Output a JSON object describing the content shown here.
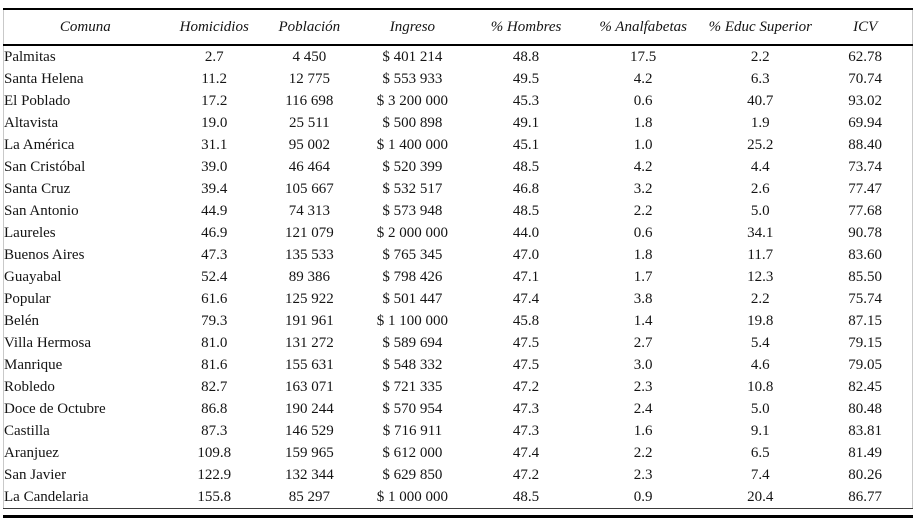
{
  "chart_data": {
    "type": "table",
    "column_keys": [
      "comuna",
      "homicidios",
      "poblacion",
      "ingreso",
      "pct_hombres",
      "pct_analfabetas",
      "pct_educ_superior",
      "icv"
    ],
    "columns": [
      "Comuna",
      "Homicidios",
      "Población",
      "Ingreso",
      "% Hombres",
      "% Analfabetas",
      "% Educ Superior",
      "ICV"
    ],
    "rows": [
      [
        "Palmitas",
        "2.7",
        "4 450",
        "$ 401 214",
        "48.8",
        "17.5",
        "2.2",
        "62.78"
      ],
      [
        "Santa Helena",
        "11.2",
        "12 775",
        "$ 553 933",
        "49.5",
        "4.2",
        "6.3",
        "70.74"
      ],
      [
        "El Poblado",
        "17.2",
        "116 698",
        "$ 3 200 000",
        "45.3",
        "0.6",
        "40.7",
        "93.02"
      ],
      [
        "Altavista",
        "19.0",
        "25 511",
        "$ 500 898",
        "49.1",
        "1.8",
        "1.9",
        "69.94"
      ],
      [
        "La América",
        "31.1",
        "95 002",
        "$ 1 400 000",
        "45.1",
        "1.0",
        "25.2",
        "88.40"
      ],
      [
        "San Cristóbal",
        "39.0",
        "46 464",
        "$ 520 399",
        "48.5",
        "4.2",
        "4.4",
        "73.74"
      ],
      [
        "Santa Cruz",
        "39.4",
        "105 667",
        "$ 532 517",
        "46.8",
        "3.2",
        "2.6",
        "77.47"
      ],
      [
        "San Antonio",
        "44.9",
        "74 313",
        "$ 573 948",
        "48.5",
        "2.2",
        "5.0",
        "77.68"
      ],
      [
        "Laureles",
        "46.9",
        "121 079",
        "$ 2 000 000",
        "44.0",
        "0.6",
        "34.1",
        "90.78"
      ],
      [
        "Buenos Aires",
        "47.3",
        "135 533",
        "$ 765 345",
        "47.0",
        "1.8",
        "11.7",
        "83.60"
      ],
      [
        "Guayabal",
        "52.4",
        "89 386",
        "$ 798 426",
        "47.1",
        "1.7",
        "12.3",
        "85.50"
      ],
      [
        "Popular",
        "61.6",
        "125 922",
        "$ 501 447",
        "47.4",
        "3.8",
        "2.2",
        "75.74"
      ],
      [
        "Belén",
        "79.3",
        "191 961",
        "$ 1 100 000",
        "45.8",
        "1.4",
        "19.8",
        "87.15"
      ],
      [
        "Villa Hermosa",
        "81.0",
        "131 272",
        "$ 589 694",
        "47.5",
        "2.7",
        "5.4",
        "79.15"
      ],
      [
        "Manrique",
        "81.6",
        "155 631",
        "$ 548 332",
        "47.5",
        "3.0",
        "4.6",
        "79.05"
      ],
      [
        "Robledo",
        "82.7",
        "163 071",
        "$ 721 335",
        "47.2",
        "2.3",
        "10.8",
        "82.45"
      ],
      [
        "Doce de Octubre",
        "86.8",
        "190 244",
        "$ 570 954",
        "47.3",
        "2.4",
        "5.0",
        "80.48"
      ],
      [
        "Castilla",
        "87.3",
        "146 529",
        "$ 716 911",
        "47.3",
        "1.6",
        "9.1",
        "83.81"
      ],
      [
        "Aranjuez",
        "109.8",
        "159 965",
        "$ 612 000",
        "47.4",
        "2.2",
        "6.5",
        "81.49"
      ],
      [
        "San Javier",
        "122.9",
        "132 344",
        "$ 629 850",
        "47.2",
        "2.3",
        "7.4",
        "80.26"
      ],
      [
        "La Candelaria",
        "155.8",
        "85 297",
        "$ 1 000 000",
        "48.5",
        "0.9",
        "20.4",
        "86.77"
      ]
    ]
  },
  "colors": {
    "rule": "#000000",
    "faint_border": "#c9c9c9",
    "text": "#141414",
    "background": "#ffffff"
  }
}
